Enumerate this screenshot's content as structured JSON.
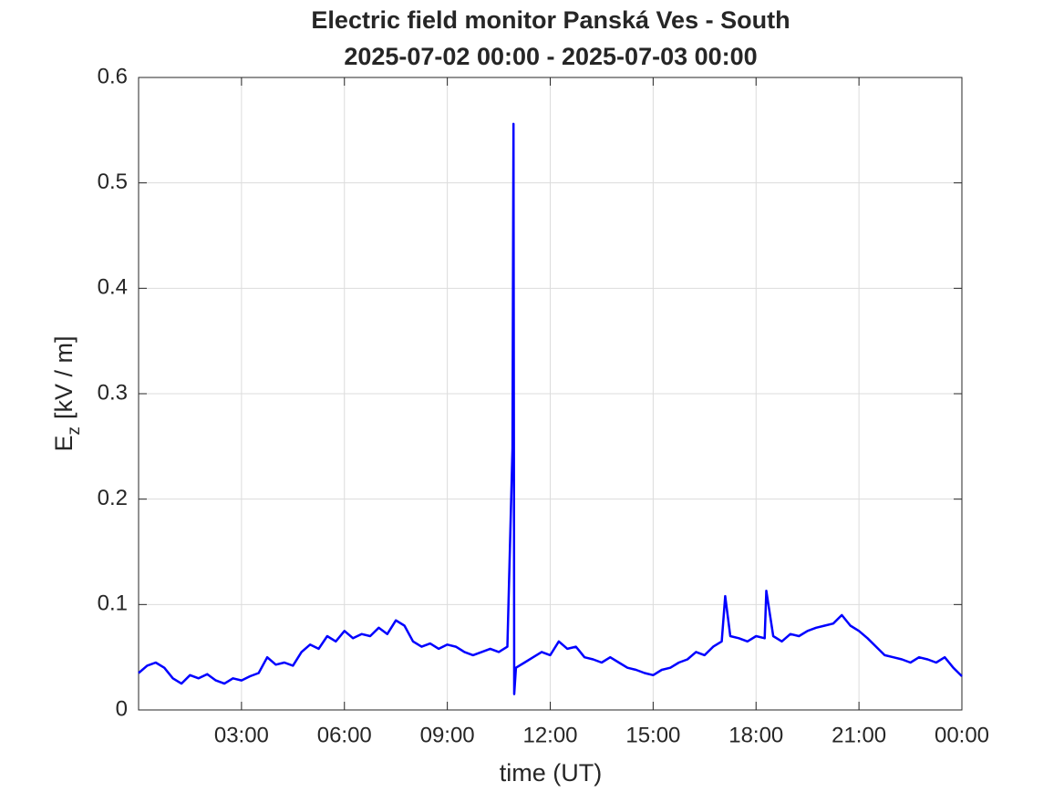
{
  "chart_data": {
    "type": "line",
    "title": "Electric field monitor Panská Ves - South",
    "subtitle": "2025-07-02 00:00 - 2025-07-03 00:00",
    "xlabel": "time (UT)",
    "ylabel": {
      "main": "E",
      "subscript": "z",
      "unit": "[kV / m]"
    },
    "xlim": [
      0,
      24
    ],
    "xticks": [
      {
        "value": 3,
        "label": "03:00"
      },
      {
        "value": 6,
        "label": "06:00"
      },
      {
        "value": 9,
        "label": "09:00"
      },
      {
        "value": 12,
        "label": "12:00"
      },
      {
        "value": 15,
        "label": "15:00"
      },
      {
        "value": 18,
        "label": "18:00"
      },
      {
        "value": 21,
        "label": "21:00"
      },
      {
        "value": 24,
        "label": "00:00"
      }
    ],
    "ylim": [
      0,
      0.6
    ],
    "yticks": [
      0,
      0.1,
      0.2,
      0.3,
      0.4,
      0.5,
      0.6
    ],
    "grid": true,
    "x": [
      0,
      0.25,
      0.5,
      0.75,
      1,
      1.25,
      1.5,
      1.75,
      2,
      2.25,
      2.5,
      2.75,
      3,
      3.25,
      3.5,
      3.75,
      4,
      4.25,
      4.5,
      4.75,
      5,
      5.25,
      5.5,
      5.75,
      6,
      6.25,
      6.5,
      6.75,
      7,
      7.25,
      7.5,
      7.75,
      8,
      8.25,
      8.5,
      8.75,
      9,
      9.25,
      9.5,
      9.75,
      10,
      10.25,
      10.5,
      10.75,
      10.9,
      10.93,
      10.95,
      11,
      11.25,
      11.5,
      11.75,
      12,
      12.25,
      12.5,
      12.75,
      13,
      13.25,
      13.5,
      13.75,
      14,
      14.25,
      14.5,
      14.75,
      15,
      15.25,
      15.5,
      15.75,
      16,
      16.25,
      16.5,
      16.75,
      17,
      17.1,
      17.25,
      17.5,
      17.75,
      18,
      18.25,
      18.3,
      18.5,
      18.75,
      19,
      19.25,
      19.5,
      19.75,
      20,
      20.25,
      20.5,
      20.75,
      21,
      21.25,
      21.5,
      21.75,
      22,
      22.25,
      22.5,
      22.75,
      23,
      23.25,
      23.5,
      23.75,
      24
    ],
    "series": [
      {
        "name": "Ez",
        "color": "#0000ff",
        "values": [
          0.035,
          0.042,
          0.045,
          0.04,
          0.03,
          0.025,
          0.033,
          0.03,
          0.034,
          0.028,
          0.025,
          0.03,
          0.028,
          0.032,
          0.035,
          0.05,
          0.043,
          0.045,
          0.042,
          0.055,
          0.062,
          0.058,
          0.07,
          0.065,
          0.075,
          0.068,
          0.072,
          0.07,
          0.078,
          0.072,
          0.085,
          0.08,
          0.065,
          0.06,
          0.063,
          0.058,
          0.062,
          0.06,
          0.055,
          0.052,
          0.055,
          0.058,
          0.055,
          0.06,
          0.248,
          0.556,
          0.015,
          0.04,
          0.045,
          0.05,
          0.055,
          0.052,
          0.065,
          0.058,
          0.06,
          0.05,
          0.048,
          0.045,
          0.05,
          0.045,
          0.04,
          0.038,
          0.035,
          0.033,
          0.038,
          0.04,
          0.045,
          0.048,
          0.055,
          0.052,
          0.06,
          0.065,
          0.108,
          0.07,
          0.068,
          0.065,
          0.07,
          0.068,
          0.113,
          0.07,
          0.065,
          0.072,
          0.07,
          0.075,
          0.078,
          0.08,
          0.082,
          0.09,
          0.08,
          0.075,
          0.068,
          0.06,
          0.052,
          0.05,
          0.048,
          0.045,
          0.05,
          0.048,
          0.045,
          0.05,
          0.04,
          0.032
        ]
      }
    ]
  }
}
